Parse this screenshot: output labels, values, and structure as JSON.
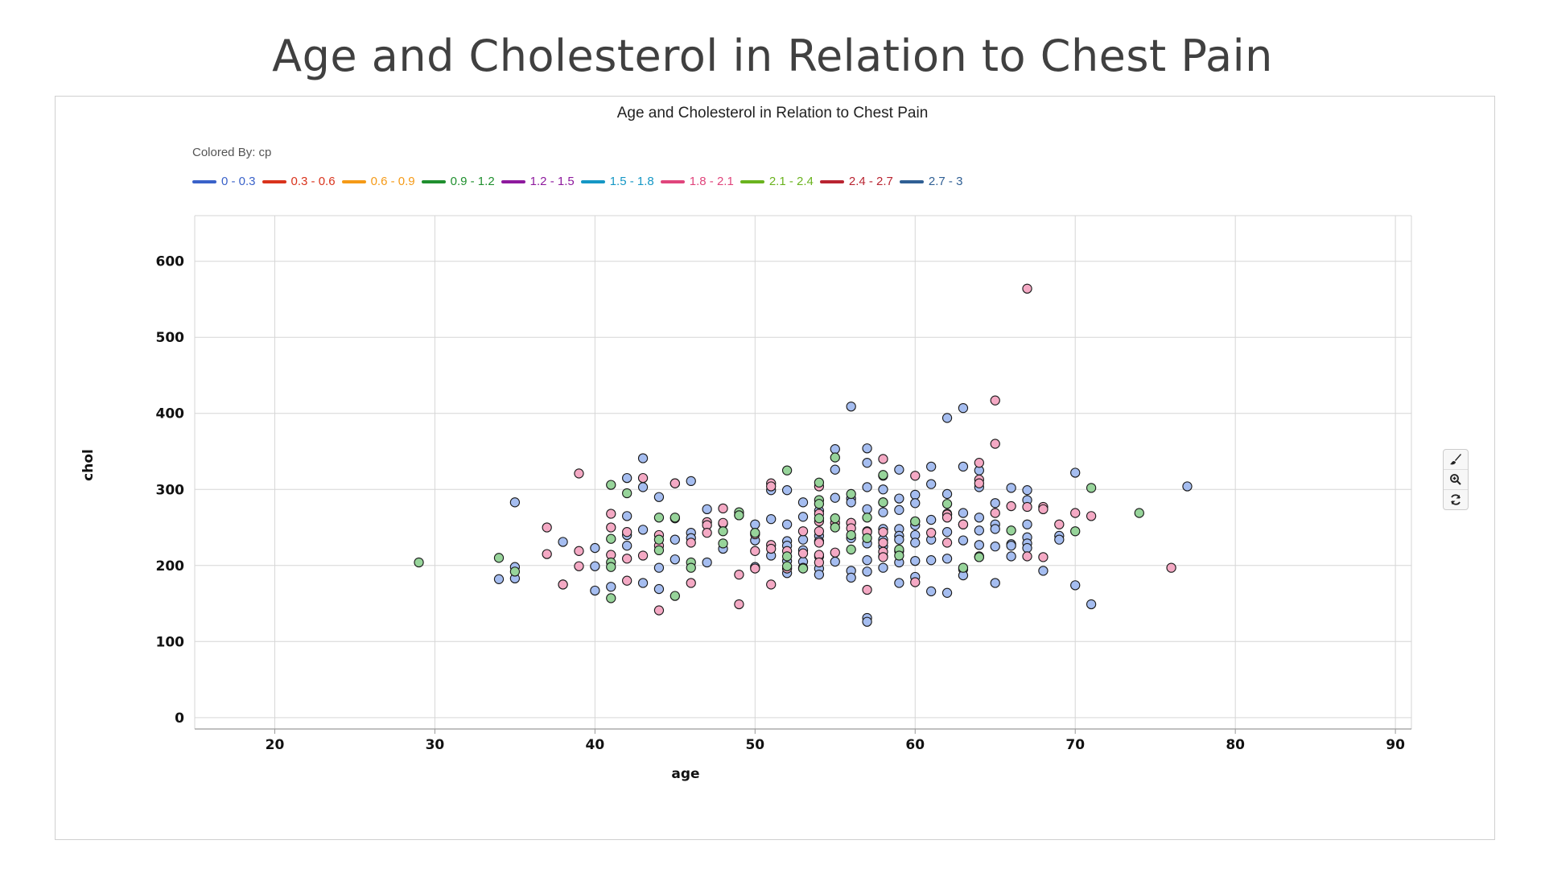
{
  "slide": {
    "title": "Age and Cholesterol in Relation to Chest Pain"
  },
  "chart_data": {
    "type": "scatter",
    "title": "Age and Cholesterol in Relation to Chest Pain",
    "colored_by_label": "Colored By: cp",
    "xlabel": "age",
    "ylabel": "chol",
    "xlim": [
      15,
      91
    ],
    "ylim": [
      -15,
      660
    ],
    "xticks": [
      20,
      30,
      40,
      50,
      60,
      70,
      80,
      90
    ],
    "yticks": [
      0,
      100,
      200,
      300,
      400,
      500,
      600
    ],
    "grid": true,
    "legend_position": "top-left",
    "legend": [
      {
        "label": "0 - 0.3",
        "color": "#3a62c9"
      },
      {
        "label": "0.3 - 0.6",
        "color": "#d9331c"
      },
      {
        "label": "0.6 - 0.9",
        "color": "#f59a17"
      },
      {
        "label": "0.9 - 1.2",
        "color": "#1f8f2e"
      },
      {
        "label": "1.2 - 1.5",
        "color": "#8e1a9e"
      },
      {
        "label": "1.5 - 1.8",
        "color": "#1597c5"
      },
      {
        "label": "1.8 - 2.1",
        "color": "#e0457c"
      },
      {
        "label": "2.1 - 2.4",
        "color": "#6ab31e"
      },
      {
        "label": "2.4 - 2.7",
        "color": "#b92431"
      },
      {
        "label": "2.7 - 3",
        "color": "#2f5f94"
      }
    ],
    "point_colors": {
      "blue": "#a5bdf0",
      "pink": "#f4a9c4",
      "green": "#97d49a"
    },
    "series": [
      {
        "color_key": "blue",
        "points": [
          [
            34,
            182
          ],
          [
            35,
            283
          ],
          [
            35,
            198
          ],
          [
            35,
            183
          ],
          [
            38,
            231
          ],
          [
            40,
            223
          ],
          [
            40,
            199
          ],
          [
            40,
            167
          ],
          [
            41,
            172
          ],
          [
            42,
            315
          ],
          [
            42,
            265
          ],
          [
            42,
            226
          ],
          [
            42,
            240
          ],
          [
            43,
            341
          ],
          [
            43,
            303
          ],
          [
            43,
            247
          ],
          [
            43,
            177
          ],
          [
            44,
            290
          ],
          [
            44,
            197
          ],
          [
            44,
            169
          ],
          [
            45,
            308
          ],
          [
            45,
            262
          ],
          [
            45,
            234
          ],
          [
            45,
            208
          ],
          [
            46,
            311
          ],
          [
            46,
            243
          ],
          [
            46,
            236
          ],
          [
            47,
            274
          ],
          [
            47,
            204
          ],
          [
            48,
            255
          ],
          [
            48,
            222
          ],
          [
            49,
            266
          ],
          [
            50,
            254
          ],
          [
            50,
            233
          ],
          [
            50,
            198
          ],
          [
            51,
            299
          ],
          [
            51,
            261
          ],
          [
            51,
            213
          ],
          [
            52,
            299
          ],
          [
            52,
            254
          ],
          [
            52,
            232
          ],
          [
            52,
            226
          ],
          [
            52,
            206
          ],
          [
            52,
            190
          ],
          [
            53,
            283
          ],
          [
            53,
            264
          ],
          [
            53,
            234
          ],
          [
            53,
            220
          ],
          [
            53,
            205
          ],
          [
            54,
            272
          ],
          [
            54,
            239
          ],
          [
            54,
            232
          ],
          [
            54,
            212
          ],
          [
            54,
            196
          ],
          [
            54,
            188
          ],
          [
            55,
            353
          ],
          [
            55,
            326
          ],
          [
            55,
            289
          ],
          [
            55,
            205
          ],
          [
            56,
            409
          ],
          [
            56,
            288
          ],
          [
            56,
            283
          ],
          [
            56,
            256
          ],
          [
            56,
            236
          ],
          [
            56,
            193
          ],
          [
            56,
            184
          ],
          [
            57,
            354
          ],
          [
            57,
            335
          ],
          [
            57,
            303
          ],
          [
            57,
            274
          ],
          [
            57,
            245
          ],
          [
            57,
            229
          ],
          [
            57,
            207
          ],
          [
            57,
            192
          ],
          [
            57,
            131
          ],
          [
            57,
            126
          ],
          [
            58,
            300
          ],
          [
            58,
            283
          ],
          [
            58,
            270
          ],
          [
            58,
            248
          ],
          [
            58,
            234
          ],
          [
            58,
            225
          ],
          [
            58,
            212
          ],
          [
            58,
            197
          ],
          [
            59,
            326
          ],
          [
            59,
            288
          ],
          [
            59,
            273
          ],
          [
            59,
            248
          ],
          [
            59,
            239
          ],
          [
            59,
            234
          ],
          [
            59,
            219
          ],
          [
            59,
            204
          ],
          [
            59,
            177
          ],
          [
            60,
            293
          ],
          [
            60,
            282
          ],
          [
            60,
            258
          ],
          [
            60,
            253
          ],
          [
            60,
            240
          ],
          [
            60,
            230
          ],
          [
            60,
            206
          ],
          [
            60,
            185
          ],
          [
            61,
            330
          ],
          [
            61,
            307
          ],
          [
            61,
            260
          ],
          [
            61,
            234
          ],
          [
            61,
            207
          ],
          [
            61,
            166
          ],
          [
            62,
            394
          ],
          [
            62,
            294
          ],
          [
            62,
            268
          ],
          [
            62,
            244
          ],
          [
            62,
            209
          ],
          [
            62,
            164
          ],
          [
            63,
            407
          ],
          [
            63,
            330
          ],
          [
            63,
            269
          ],
          [
            63,
            254
          ],
          [
            63,
            233
          ],
          [
            63,
            195
          ],
          [
            63,
            187
          ],
          [
            64,
            325
          ],
          [
            64,
            303
          ],
          [
            64,
            263
          ],
          [
            64,
            246
          ],
          [
            64,
            227
          ],
          [
            64,
            211
          ],
          [
            65,
            282
          ],
          [
            65,
            254
          ],
          [
            65,
            248
          ],
          [
            65,
            225
          ],
          [
            65,
            177
          ],
          [
            66,
            302
          ],
          [
            66,
            228
          ],
          [
            66,
            226
          ],
          [
            66,
            212
          ],
          [
            67,
            299
          ],
          [
            67,
            286
          ],
          [
            67,
            254
          ],
          [
            67,
            237
          ],
          [
            67,
            229
          ],
          [
            67,
            223
          ],
          [
            68,
            193
          ],
          [
            69,
            239
          ],
          [
            69,
            234
          ],
          [
            70,
            322
          ],
          [
            70,
            174
          ],
          [
            71,
            149
          ],
          [
            77,
            304
          ]
        ]
      },
      {
        "color_key": "pink",
        "points": [
          [
            37,
            250
          ],
          [
            37,
            215
          ],
          [
            38,
            175
          ],
          [
            38,
            175
          ],
          [
            39,
            321
          ],
          [
            39,
            219
          ],
          [
            39,
            199
          ],
          [
            41,
            268
          ],
          [
            41,
            250
          ],
          [
            41,
            214
          ],
          [
            42,
            244
          ],
          [
            42,
            209
          ],
          [
            42,
            180
          ],
          [
            43,
            315
          ],
          [
            43,
            213
          ],
          [
            44,
            240
          ],
          [
            44,
            226
          ],
          [
            44,
            141
          ],
          [
            45,
            308
          ],
          [
            46,
            230
          ],
          [
            46,
            177
          ],
          [
            47,
            257
          ],
          [
            47,
            253
          ],
          [
            47,
            243
          ],
          [
            48,
            275
          ],
          [
            48,
            256
          ],
          [
            49,
            188
          ],
          [
            49,
            149
          ],
          [
            50,
            241
          ],
          [
            50,
            219
          ],
          [
            50,
            196
          ],
          [
            51,
            308
          ],
          [
            51,
            304
          ],
          [
            51,
            227
          ],
          [
            51,
            222
          ],
          [
            51,
            175
          ],
          [
            52,
            219
          ],
          [
            52,
            196
          ],
          [
            53,
            245
          ],
          [
            53,
            216
          ],
          [
            53,
            197
          ],
          [
            54,
            304
          ],
          [
            54,
            268
          ],
          [
            54,
            258
          ],
          [
            54,
            245
          ],
          [
            54,
            230
          ],
          [
            54,
            214
          ],
          [
            54,
            204
          ],
          [
            55,
            256
          ],
          [
            55,
            217
          ],
          [
            56,
            256
          ],
          [
            56,
            249
          ],
          [
            57,
            244
          ],
          [
            57,
            168
          ],
          [
            58,
            340
          ],
          [
            58,
            318
          ],
          [
            58,
            244
          ],
          [
            58,
            230
          ],
          [
            58,
            218
          ],
          [
            58,
            211
          ],
          [
            60,
            318
          ],
          [
            60,
            178
          ],
          [
            61,
            243
          ],
          [
            62,
            267
          ],
          [
            62,
            263
          ],
          [
            62,
            230
          ],
          [
            63,
            254
          ],
          [
            64,
            335
          ],
          [
            64,
            313
          ],
          [
            64,
            308
          ],
          [
            64,
            212
          ],
          [
            65,
            417
          ],
          [
            65,
            360
          ],
          [
            65,
            269
          ],
          [
            66,
            278
          ],
          [
            67,
            564
          ],
          [
            67,
            277
          ],
          [
            67,
            212
          ],
          [
            68,
            277
          ],
          [
            68,
            274
          ],
          [
            68,
            211
          ],
          [
            69,
            254
          ],
          [
            70,
            269
          ],
          [
            71,
            265
          ],
          [
            76,
            197
          ]
        ]
      },
      {
        "color_key": "green",
        "points": [
          [
            29,
            204
          ],
          [
            34,
            210
          ],
          [
            35,
            192
          ],
          [
            41,
            306
          ],
          [
            41,
            235
          ],
          [
            41,
            204
          ],
          [
            41,
            198
          ],
          [
            41,
            157
          ],
          [
            42,
            295
          ],
          [
            44,
            263
          ],
          [
            44,
            234
          ],
          [
            44,
            220
          ],
          [
            45,
            263
          ],
          [
            45,
            160
          ],
          [
            46,
            204
          ],
          [
            46,
            197
          ],
          [
            48,
            245
          ],
          [
            48,
            229
          ],
          [
            49,
            270
          ],
          [
            49,
            266
          ],
          [
            50,
            243
          ],
          [
            52,
            325
          ],
          [
            52,
            212
          ],
          [
            52,
            199
          ],
          [
            53,
            196
          ],
          [
            54,
            309
          ],
          [
            54,
            286
          ],
          [
            54,
            281
          ],
          [
            54,
            262
          ],
          [
            55,
            342
          ],
          [
            55,
            262
          ],
          [
            55,
            250
          ],
          [
            56,
            294
          ],
          [
            56,
            240
          ],
          [
            56,
            221
          ],
          [
            57,
            263
          ],
          [
            57,
            236
          ],
          [
            58,
            319
          ],
          [
            58,
            283
          ],
          [
            59,
            221
          ],
          [
            59,
            213
          ],
          [
            60,
            258
          ],
          [
            62,
            281
          ],
          [
            63,
            197
          ],
          [
            64,
            211
          ],
          [
            66,
            246
          ],
          [
            70,
            245
          ],
          [
            71,
            302
          ],
          [
            74,
            269
          ]
        ]
      }
    ]
  },
  "toolbar": {
    "tools": [
      "brush-icon",
      "zoom-in-icon",
      "refresh-icon"
    ]
  }
}
